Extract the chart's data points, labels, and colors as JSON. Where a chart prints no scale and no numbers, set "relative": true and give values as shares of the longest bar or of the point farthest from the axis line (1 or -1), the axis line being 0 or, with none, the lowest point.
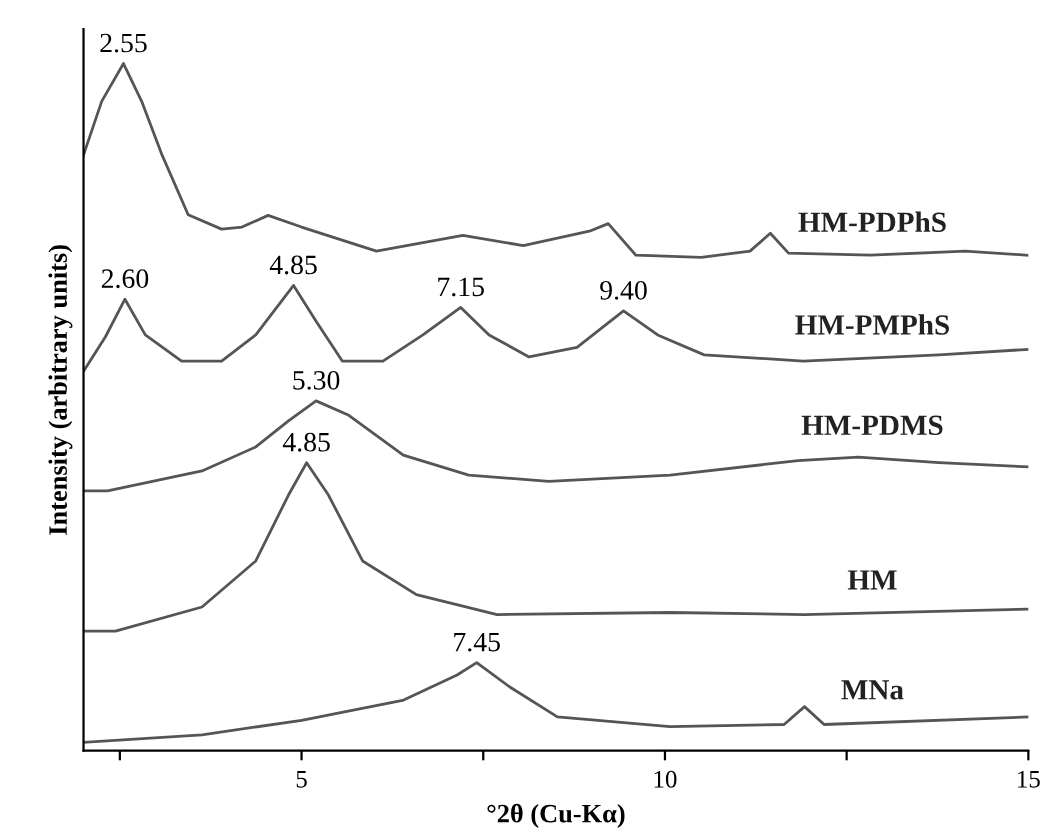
{
  "chart_data": {
    "type": "line",
    "relative": true,
    "xlabel": "°2θ (Cu-Kα)",
    "ylabel": "Intensity (arbitrary units)",
    "xlim": [
      2,
      15
    ],
    "xticks": [
      {
        "value": 2.5,
        "label": null
      },
      5,
      {
        "value": 7.5,
        "label": null
      },
      10,
      {
        "value": 12.5,
        "label": null
      },
      15
    ],
    "grid": false,
    "legend": false,
    "marker": "none",
    "line_style": "solid",
    "series": [
      {
        "name": "HM-PDPhS",
        "color": "#555555",
        "x": [
          2.0,
          2.25,
          2.55,
          2.8,
          3.08,
          3.44,
          3.9,
          4.18,
          4.54,
          5.0,
          6.03,
          7.22,
          8.05,
          8.96,
          9.22,
          9.6,
          10.5,
          11.17,
          11.45,
          11.7,
          12.83,
          14.13,
          15.0
        ],
        "values": [
          0.867,
          0.945,
          1.0,
          0.945,
          0.867,
          0.78,
          0.759,
          0.762,
          0.779,
          0.762,
          0.727,
          0.75,
          0.735,
          0.756,
          0.767,
          0.721,
          0.718,
          0.727,
          0.753,
          0.724,
          0.721,
          0.727,
          0.721
        ]
      },
      {
        "name": "HM-PMPhS",
        "color": "#555555",
        "x": [
          2.0,
          2.3,
          2.57,
          2.85,
          3.35,
          3.9,
          4.37,
          4.89,
          5.2,
          5.56,
          6.12,
          6.67,
          7.19,
          7.58,
          8.13,
          8.79,
          9.43,
          9.9,
          10.54,
          11.9,
          13.77,
          15.0
        ],
        "values": [
          0.552,
          0.602,
          0.657,
          0.605,
          0.567,
          0.567,
          0.605,
          0.677,
          0.625,
          0.567,
          0.567,
          0.605,
          0.645,
          0.605,
          0.573,
          0.587,
          0.64,
          0.605,
          0.576,
          0.567,
          0.576,
          0.584
        ]
      },
      {
        "name": "HM-PDMS",
        "color": "#555555",
        "x": [
          2.0,
          2.33,
          3.63,
          4.37,
          4.82,
          5.2,
          5.65,
          6.4,
          7.3,
          8.4,
          10.07,
          11.83,
          12.66,
          13.77,
          15.0
        ],
        "values": [
          0.378,
          0.378,
          0.407,
          0.442,
          0.48,
          0.509,
          0.488,
          0.43,
          0.401,
          0.392,
          0.401,
          0.422,
          0.427,
          0.419,
          0.413
        ]
      },
      {
        "name": "HM",
        "color": "#555555",
        "x": [
          2.0,
          2.44,
          3.63,
          4.37,
          4.82,
          5.07,
          5.37,
          5.84,
          6.58,
          7.69,
          10.07,
          11.92,
          15.0
        ],
        "values": [
          0.174,
          0.174,
          0.209,
          0.276,
          0.372,
          0.419,
          0.372,
          0.276,
          0.227,
          0.198,
          0.201,
          0.198,
          0.206
        ]
      },
      {
        "name": "MNa",
        "color": "#555555",
        "x": [
          2.0,
          3.63,
          5.0,
          6.39,
          7.14,
          7.41,
          7.86,
          8.52,
          10.07,
          11.64,
          11.92,
          12.19,
          15.0
        ],
        "values": [
          0.012,
          0.023,
          0.044,
          0.073,
          0.11,
          0.128,
          0.093,
          0.049,
          0.035,
          0.038,
          0.064,
          0.038,
          0.049
        ]
      }
    ],
    "annotations": [
      {
        "text": "2.55",
        "x": 2.55,
        "y": 1.0
      },
      {
        "text": "2.60",
        "x": 2.57,
        "y": 0.657
      },
      {
        "text": "4.85",
        "x": 4.89,
        "y": 0.677
      },
      {
        "text": "7.15",
        "x": 7.19,
        "y": 0.645
      },
      {
        "text": "9.40",
        "x": 9.43,
        "y": 0.64
      },
      {
        "text": "5.30",
        "x": 5.2,
        "y": 0.509
      },
      {
        "text": "4.85",
        "x": 5.07,
        "y": 0.419
      },
      {
        "text": "7.45",
        "x": 7.41,
        "y": 0.128
      }
    ]
  }
}
